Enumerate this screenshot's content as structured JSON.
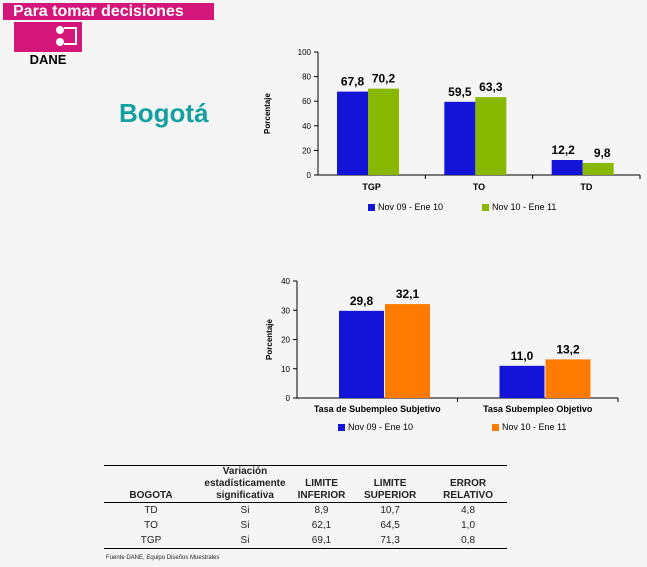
{
  "header": {
    "banner": "Para tomar decisiones",
    "logo_text": "DANE",
    "city": "Bogotá"
  },
  "colors": {
    "brand": "#d4157a",
    "blue": "#1414d8",
    "green": "#88b800",
    "orange": "#ff7a00"
  },
  "chart_data": [
    {
      "type": "bar",
      "categories": [
        "TGP",
        "TO",
        "TD"
      ],
      "ylabel": "Porcentaje",
      "ylim": [
        0,
        100
      ],
      "yticks": [
        0,
        20,
        40,
        60,
        80,
        100
      ],
      "series": [
        {
          "name": "Nov 09 - Ene 10",
          "values": [
            67.8,
            59.5,
            12.2
          ],
          "labels": [
            "67,8",
            "59,5",
            "12,2"
          ],
          "color": "#1414d8"
        },
        {
          "name": "Nov 10 - Ene 11",
          "values": [
            70.2,
            63.3,
            9.8
          ],
          "labels": [
            "70,2",
            "63,3",
            "9,8"
          ],
          "color": "#88b800"
        }
      ]
    },
    {
      "type": "bar",
      "categories": [
        "Tasa de Subempleo Subjetivo",
        "Tasa Subempleo Objetivo"
      ],
      "ylabel": "Porcentaje",
      "ylim": [
        0,
        40
      ],
      "yticks": [
        0,
        10,
        20,
        30,
        40
      ],
      "series": [
        {
          "name": "Nov 09 - Ene 10",
          "values": [
            29.8,
            11.0
          ],
          "labels": [
            "29,8",
            "11,0"
          ],
          "color": "#1414d8"
        },
        {
          "name": "Nov 10 - Ene 11",
          "values": [
            32.1,
            13.2
          ],
          "labels": [
            "32,1",
            "13,2"
          ],
          "color": "#ff7a00"
        }
      ]
    }
  ],
  "table": {
    "headers": [
      "BOGOTA",
      "Variación estadísticamente significativa",
      "LIMITE INFERIOR",
      "LIMITE SUPERIOR",
      "ERROR RELATIVO"
    ],
    "rows": [
      [
        "TD",
        "Si",
        "8,9",
        "10,7",
        "4,8"
      ],
      [
        "TO",
        "Si",
        "62,1",
        "64,5",
        "1,0"
      ],
      [
        "TGP",
        "Si",
        "69,1",
        "71,3",
        "0,8"
      ]
    ],
    "source": "Fuente DANE, Equipo Diseños Muestrales"
  }
}
